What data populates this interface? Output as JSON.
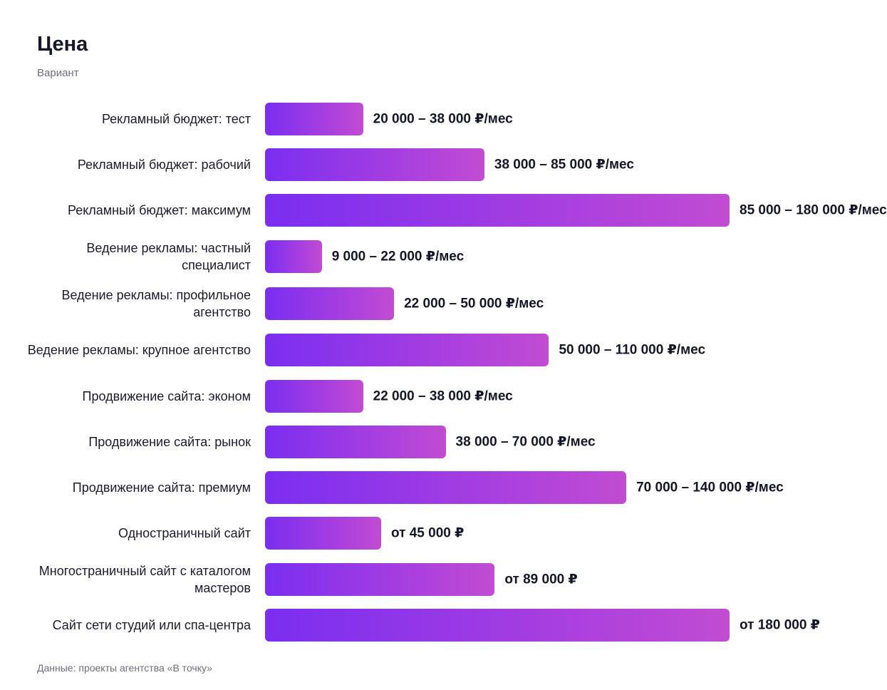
{
  "title": "Цена",
  "subtitle": "Вариант",
  "source": "Данные: проекты агентства «В точку»",
  "colors": {
    "bar_start": "#7a2ef0",
    "bar_end": "#c24cd2",
    "text": "#1b1b2f",
    "muted": "#6e6e7c"
  },
  "chart_data": {
    "type": "bar",
    "orientation": "horizontal",
    "categories": [
      "Рекламный бюджет: тест",
      "Рекламный бюджет: рабочий",
      "Рекламный бюджет: максимум",
      "Ведение рекламы: частный специалист",
      "Ведение рекламы: профильное агентство",
      "Ведение рекламы: крупное агентство",
      "Продвижение сайта: эконом",
      "Продвижение сайта: рынок",
      "Продвижение сайта: премиум",
      "Одностраничный сайт",
      "Многостраничный сайт с каталогом мастеров",
      "Сайт сети студий или спа-центра"
    ],
    "values": [
      38000,
      85000,
      180000,
      22000,
      50000,
      110000,
      38000,
      70000,
      140000,
      45000,
      89000,
      180000
    ],
    "value_labels": [
      "20 000 – 38 000 ₽/мес",
      "38 000 – 85 000 ₽/мес",
      "85 000 – 180 000 ₽/мес",
      "9 000 – 22 000 ₽/мес",
      "22 000 – 50 000 ₽/мес",
      "50 000 – 110 000 ₽/мес",
      "22 000 – 38 000 ₽/мес",
      "38 000 – 70 000 ₽/мес",
      "70 000 – 140 000 ₽/мес",
      "от 45 000 ₽",
      "от 89 000 ₽",
      "от 180 000 ₽"
    ],
    "grid": false,
    "legend": "none"
  }
}
